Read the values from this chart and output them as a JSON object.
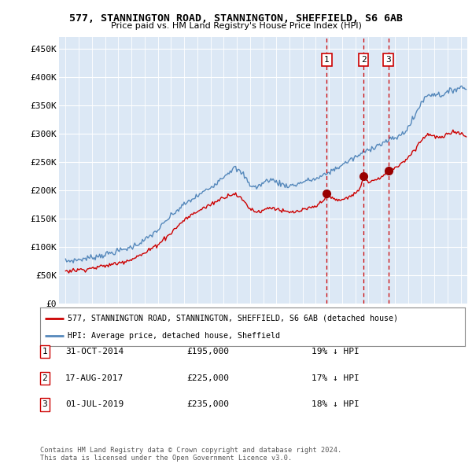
{
  "title": "577, STANNINGTON ROAD, STANNINGTON, SHEFFIELD, S6 6AB",
  "subtitle": "Price paid vs. HM Land Registry's House Price Index (HPI)",
  "ylim": [
    0,
    470000
  ],
  "yticks": [
    0,
    50000,
    100000,
    150000,
    200000,
    250000,
    300000,
    350000,
    400000,
    450000
  ],
  "ytick_labels": [
    "£0",
    "£50K",
    "£100K",
    "£150K",
    "£200K",
    "£250K",
    "£300K",
    "£350K",
    "£400K",
    "£450K"
  ],
  "xlim_start": 1994.5,
  "xlim_end": 2025.5,
  "sale_color": "#cc0000",
  "hpi_color": "#5588bb",
  "vline_color": "#cc0000",
  "transactions": [
    {
      "num": 1,
      "date_str": "31-OCT-2014",
      "year": 2014.83,
      "price": 195000,
      "pct": "19%"
    },
    {
      "num": 2,
      "date_str": "17-AUG-2017",
      "year": 2017.62,
      "price": 225000,
      "pct": "17%"
    },
    {
      "num": 3,
      "date_str": "01-JUL-2019",
      "year": 2019.5,
      "price": 235000,
      "pct": "18%"
    }
  ],
  "legend_sale_label": "577, STANNINGTON ROAD, STANNINGTON, SHEFFIELD, S6 6AB (detached house)",
  "legend_hpi_label": "HPI: Average price, detached house, Sheffield",
  "footer1": "Contains HM Land Registry data © Crown copyright and database right 2024.",
  "footer2": "This data is licensed under the Open Government Licence v3.0.",
  "background_color": "#ffffff",
  "plot_bg_color": "#dce8f5"
}
